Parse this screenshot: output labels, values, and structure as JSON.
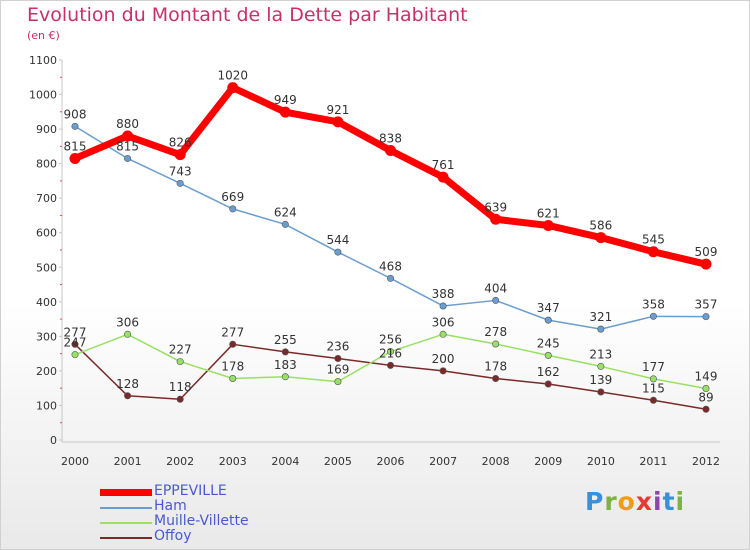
{
  "title": "Evolution du Montant de la Dette par Habitant",
  "subtitle": "(en €)",
  "logo": {
    "letters": [
      "P",
      "r",
      "o",
      "x",
      "i",
      "t",
      "i"
    ],
    "colors": [
      "#3b8fd6",
      "#7cb342",
      "#f39c12",
      "#e53935",
      "#8e44ad",
      "#3b8fd6",
      "#7cb342"
    ]
  },
  "chart_data": {
    "type": "line",
    "title": "Evolution du Montant de la Dette par Habitant",
    "ylabel": "(en €)",
    "xlabel": "",
    "x": [
      "2000",
      "2001",
      "2002",
      "2003",
      "2004",
      "2005",
      "2006",
      "2007",
      "2008",
      "2009",
      "2010",
      "2011",
      "2012"
    ],
    "ylim": [
      0,
      1100
    ],
    "yticks": [
      0,
      100,
      200,
      300,
      400,
      500,
      600,
      700,
      800,
      900,
      1000,
      1100
    ],
    "grid": false,
    "legend_position": "bottom-left",
    "series": [
      {
        "name": "EPPEVILLE",
        "color": "#ff0000",
        "width": 7,
        "marker": 5.5,
        "values": [
          815,
          880,
          826,
          1020,
          949,
          921,
          838,
          761,
          639,
          621,
          586,
          545,
          509
        ]
      },
      {
        "name": "Ham",
        "color": "#6b9ed0",
        "width": 1.5,
        "marker": 3.2,
        "values": [
          908,
          815,
          743,
          669,
          624,
          544,
          468,
          388,
          404,
          347,
          321,
          358,
          357
        ]
      },
      {
        "name": "Muille-Villette",
        "color": "#99e066",
        "width": 1.5,
        "marker": 3.2,
        "values": [
          247,
          306,
          227,
          178,
          183,
          169,
          256,
          306,
          278,
          245,
          213,
          177,
          149
        ]
      },
      {
        "name": "Offoy",
        "color": "#7a2a2a",
        "width": 1.5,
        "marker": 3.2,
        "values": [
          277,
          128,
          118,
          277,
          255,
          236,
          216,
          200,
          178,
          162,
          139,
          115,
          89
        ]
      }
    ]
  }
}
